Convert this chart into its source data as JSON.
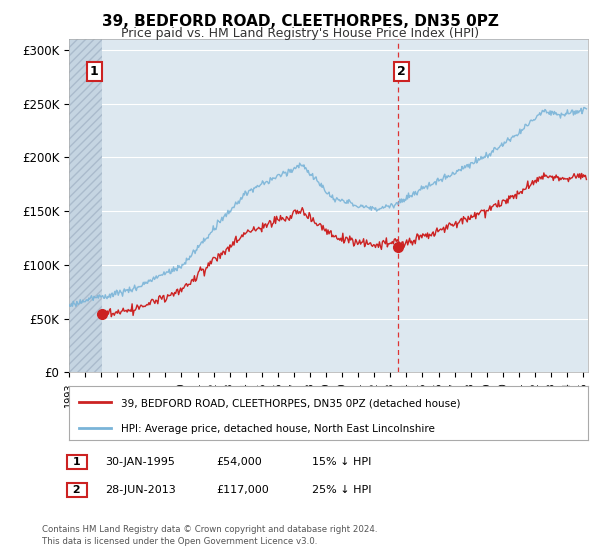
{
  "title": "39, BEDFORD ROAD, CLEETHORPES, DN35 0PZ",
  "subtitle": "Price paid vs. HM Land Registry's House Price Index (HPI)",
  "ylim": [
    0,
    310000
  ],
  "yticks": [
    0,
    50000,
    100000,
    150000,
    200000,
    250000,
    300000
  ],
  "ytick_labels": [
    "£0",
    "£50K",
    "£100K",
    "£150K",
    "£200K",
    "£250K",
    "£300K"
  ],
  "hpi_color": "#7ab4d8",
  "price_color": "#cc2222",
  "marker_color": "#cc2222",
  "bg_plot": "#dde8f0",
  "bg_hatch_color": "#c5d5e2",
  "purchase1_year": 1995.08,
  "purchase1_price": 54000,
  "purchase2_year": 2013.49,
  "purchase2_price": 117000,
  "legend_line1": "39, BEDFORD ROAD, CLEETHORPES, DN35 0PZ (detached house)",
  "legend_line2": "HPI: Average price, detached house, North East Lincolnshire",
  "ann1_date": "30-JAN-1995",
  "ann1_price": "£54,000",
  "ann1_hpi": "15% ↓ HPI",
  "ann2_date": "28-JUN-2013",
  "ann2_price": "£117,000",
  "ann2_hpi": "25% ↓ HPI",
  "footnote": "Contains HM Land Registry data © Crown copyright and database right 2024.\nThis data is licensed under the Open Government Licence v3.0.",
  "vline_x": 2013.49,
  "hatch_x_start": 1993.0,
  "hatch_x_end": 1995.08,
  "xlim_start": 1993.0,
  "xlim_end": 2025.3
}
